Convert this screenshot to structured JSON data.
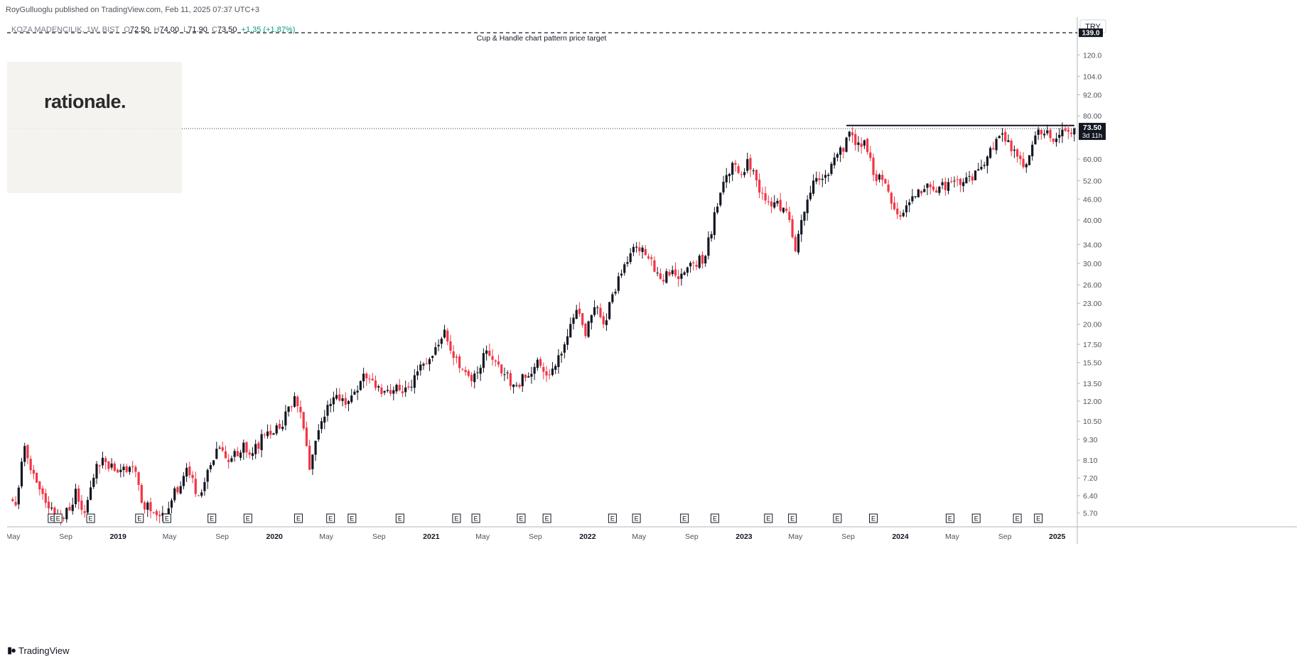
{
  "header": {
    "publisher": "RoyGulluoglu published on TradingView.com, Feb 11, 2025 07:37 UTC+3"
  },
  "symbol_bar": {
    "name": "KOZA MADENCILIK, 1W, BIST",
    "open_label": "O",
    "open": "72.50",
    "high_label": "H",
    "high": "74.00",
    "low_label": "L",
    "low": "71.90",
    "close_label": "C",
    "close": "73.50",
    "change": "+1.35 (+1.87%)"
  },
  "watermark": {
    "logo_text": "rationale."
  },
  "footer": {
    "brand": "TradingView"
  },
  "price_axis": {
    "currency": "TRY",
    "target_label": "139.0",
    "last_price_label": "73.50",
    "countdown_label": "3d 11h"
  },
  "annotation": {
    "text": "Cup & Handle chart pattern price target"
  },
  "colors": {
    "up": "#131722",
    "down": "#f23645",
    "grid": "#e0e3eb",
    "text": "#131722",
    "axis_text": "#50535e"
  },
  "chart_data": {
    "type": "candlestick",
    "scale": "log",
    "timeframe": "1W",
    "ylim": [
      5.3,
      150
    ],
    "y_ticks": [
      "5.70",
      "6.40",
      "7.20",
      "8.10",
      "9.30",
      "10.50",
      "12.00",
      "13.50",
      "15.50",
      "17.50",
      "20.00",
      "23.00",
      "26.00",
      "30.00",
      "34.00",
      "40.00",
      "46.00",
      "52.00",
      "60.00",
      "80.00",
      "92.00",
      "104.0",
      "120.0"
    ],
    "x_ticks": [
      {
        "label": "May",
        "date": "2018-05-01",
        "major": false
      },
      {
        "label": "Sep",
        "date": "2018-09-01",
        "major": false
      },
      {
        "label": "2019",
        "date": "2019-01-01",
        "major": true
      },
      {
        "label": "May",
        "date": "2019-05-01",
        "major": false
      },
      {
        "label": "Sep",
        "date": "2019-09-01",
        "major": false
      },
      {
        "label": "2020",
        "date": "2020-01-01",
        "major": true
      },
      {
        "label": "May",
        "date": "2020-05-01",
        "major": false
      },
      {
        "label": "Sep",
        "date": "2020-09-01",
        "major": false
      },
      {
        "label": "2021",
        "date": "2021-01-01",
        "major": true
      },
      {
        "label": "May",
        "date": "2021-05-01",
        "major": false
      },
      {
        "label": "Sep",
        "date": "2021-09-01",
        "major": false
      },
      {
        "label": "2022",
        "date": "2022-01-01",
        "major": true
      },
      {
        "label": "May",
        "date": "2022-05-01",
        "major": false
      },
      {
        "label": "Sep",
        "date": "2022-09-01",
        "major": false
      },
      {
        "label": "2023",
        "date": "2023-01-01",
        "major": true
      },
      {
        "label": "May",
        "date": "2023-05-01",
        "major": false
      },
      {
        "label": "Sep",
        "date": "2023-09-01",
        "major": false
      },
      {
        "label": "2024",
        "date": "2024-01-01",
        "major": true
      },
      {
        "label": "May",
        "date": "2024-05-01",
        "major": false
      },
      {
        "label": "Sep",
        "date": "2024-09-01",
        "major": false
      },
      {
        "label": "2025",
        "date": "2025-01-01",
        "major": true
      }
    ],
    "earnings_marker": "E",
    "earnings_dates": [
      "2018-07-31",
      "2018-08-14",
      "2018-10-29",
      "2019-02-20",
      "2019-04-25",
      "2019-08-08",
      "2019-10-31",
      "2020-02-26",
      "2020-05-11",
      "2020-06-30",
      "2020-10-20",
      "2021-03-01",
      "2021-04-15",
      "2021-07-30",
      "2021-09-28",
      "2022-02-28",
      "2022-04-25",
      "2022-08-15",
      "2022-10-25",
      "2023-02-27",
      "2023-04-24",
      "2023-08-07",
      "2023-10-30",
      "2024-04-26",
      "2024-06-26",
      "2024-09-30",
      "2024-11-18"
    ],
    "target_level": 139.0,
    "resistance": {
      "start": "2023-08-28",
      "end": "2025-02-10",
      "value": 75.0
    },
    "last_price": 73.5,
    "anchors": [
      [
        "2018-04-23",
        6.2
      ],
      [
        "2018-05-07",
        6.0
      ],
      [
        "2018-05-28",
        8.9
      ],
      [
        "2018-06-18",
        7.4
      ],
      [
        "2018-07-16",
        6.1
      ],
      [
        "2018-08-13",
        5.6
      ],
      [
        "2018-09-10",
        5.8
      ],
      [
        "2018-09-24",
        6.7
      ],
      [
        "2018-10-15",
        5.7
      ],
      [
        "2018-11-12",
        7.9
      ],
      [
        "2018-12-03",
        8.0
      ],
      [
        "2019-01-07",
        7.6
      ],
      [
        "2019-02-11",
        7.5
      ],
      [
        "2019-02-25",
        6.1
      ],
      [
        "2019-04-15",
        5.7
      ],
      [
        "2019-05-06",
        6.2
      ],
      [
        "2019-06-10",
        7.7
      ],
      [
        "2019-07-08",
        6.4
      ],
      [
        "2019-08-26",
        8.8
      ],
      [
        "2019-09-16",
        8.0
      ],
      [
        "2019-10-21",
        9.1
      ],
      [
        "2019-11-04",
        8.4
      ],
      [
        "2019-12-09",
        9.6
      ],
      [
        "2020-01-13",
        10.0
      ],
      [
        "2020-02-17",
        12.4
      ],
      [
        "2020-03-09",
        10.0
      ],
      [
        "2020-03-23",
        7.6
      ],
      [
        "2020-04-20",
        10.5
      ],
      [
        "2020-05-25",
        12.5
      ],
      [
        "2020-06-22",
        12.0
      ],
      [
        "2020-07-27",
        14.4
      ],
      [
        "2020-08-24",
        13.1
      ],
      [
        "2020-10-19",
        12.9
      ],
      [
        "2020-11-16",
        13.2
      ],
      [
        "2020-12-07",
        15.3
      ],
      [
        "2021-01-04",
        16.2
      ],
      [
        "2021-02-01",
        19.3
      ],
      [
        "2021-02-22",
        16.0
      ],
      [
        "2021-03-15",
        14.8
      ],
      [
        "2021-04-05",
        13.7
      ],
      [
        "2021-05-10",
        16.8
      ],
      [
        "2021-06-07",
        15.3
      ],
      [
        "2021-07-12",
        13.4
      ],
      [
        "2021-08-09",
        14.0
      ],
      [
        "2021-09-06",
        15.8
      ],
      [
        "2021-10-04",
        14.3
      ],
      [
        "2021-11-08",
        17.5
      ],
      [
        "2021-12-06",
        22.0
      ],
      [
        "2021-12-27",
        18.5
      ],
      [
        "2022-01-17",
        22.4
      ],
      [
        "2022-02-07",
        20.0
      ],
      [
        "2022-03-21",
        28.0
      ],
      [
        "2022-04-25",
        33.5
      ],
      [
        "2022-05-23",
        31.0
      ],
      [
        "2022-06-20",
        27.0
      ],
      [
        "2022-07-11",
        27.7
      ],
      [
        "2022-08-08",
        28.0
      ],
      [
        "2022-09-05",
        30.0
      ],
      [
        "2022-10-03",
        31.5
      ],
      [
        "2022-11-07",
        48.0
      ],
      [
        "2022-12-05",
        58.5
      ],
      [
        "2022-12-26",
        54.0
      ],
      [
        "2023-01-09",
        60.0
      ],
      [
        "2023-02-06",
        48.0
      ],
      [
        "2023-03-13",
        45.0
      ],
      [
        "2023-04-17",
        40.0
      ],
      [
        "2023-05-01",
        32.5
      ],
      [
        "2023-05-15",
        40.0
      ],
      [
        "2023-06-12",
        52.0
      ],
      [
        "2023-07-10",
        54.0
      ],
      [
        "2023-08-07",
        62.0
      ],
      [
        "2023-08-21",
        63.0
      ],
      [
        "2023-09-04",
        72.0
      ],
      [
        "2023-09-25",
        67.0
      ],
      [
        "2023-10-09",
        68.0
      ],
      [
        "2023-10-30",
        54.0
      ],
      [
        "2023-11-27",
        51.0
      ],
      [
        "2023-12-18",
        43.0
      ],
      [
        "2024-01-08",
        42.0
      ],
      [
        "2024-01-22",
        45.0
      ],
      [
        "2024-02-12",
        49.0
      ],
      [
        "2024-03-04",
        51.0
      ],
      [
        "2024-03-25",
        48.0
      ],
      [
        "2024-04-22",
        51.5
      ],
      [
        "2024-05-20",
        50.5
      ],
      [
        "2024-06-17",
        52.0
      ],
      [
        "2024-07-08",
        57.0
      ],
      [
        "2024-08-05",
        64.0
      ],
      [
        "2024-08-19",
        70.0
      ],
      [
        "2024-09-09",
        68.0
      ],
      [
        "2024-09-30",
        61.0
      ],
      [
        "2024-10-21",
        58.0
      ],
      [
        "2024-11-04",
        66.0
      ],
      [
        "2024-11-18",
        73.0
      ],
      [
        "2024-12-02",
        71.0
      ],
      [
        "2024-12-16",
        69.0
      ],
      [
        "2025-01-06",
        70.5
      ],
      [
        "2025-01-27",
        72.0
      ],
      [
        "2025-02-10",
        73.5
      ]
    ]
  }
}
